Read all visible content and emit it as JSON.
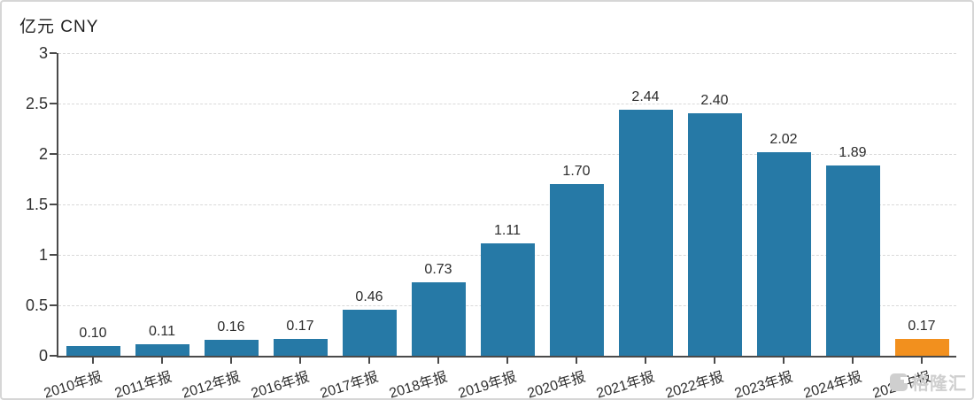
{
  "chart_data": {
    "type": "bar",
    "title": "亿元 CNY",
    "categories": [
      "2010年报",
      "2011年报",
      "2012年报",
      "2016年报",
      "2017年报",
      "2018年报",
      "2019年报",
      "2020年报",
      "2021年报",
      "2022年报",
      "2023年报",
      "2024年报",
      "2025中报"
    ],
    "values": [
      0.1,
      0.11,
      0.16,
      0.17,
      0.46,
      0.73,
      1.11,
      1.7,
      2.44,
      2.4,
      2.02,
      1.89,
      0.17
    ],
    "data_labels": [
      "0.10",
      "0.11",
      "0.16",
      "0.17",
      "0.46",
      "0.73",
      "1.11",
      "1.70",
      "2.44",
      "2.40",
      "2.02",
      "1.89",
      "0.17"
    ],
    "ylim": [
      0,
      3
    ],
    "ytick_step": 0.5,
    "ytick_labels": [
      "0",
      "0.5",
      "1",
      "1.5",
      "2",
      "2.5",
      "3"
    ],
    "grid": "horizontal-dashed",
    "legend": "none",
    "colors": {
      "bar": "#2679a6",
      "highlight_bar": "#f2901e",
      "highlight_index": 12,
      "axis": "#4a4a4a",
      "grid": "#d9d9d9",
      "label_text": "#303030"
    }
  },
  "watermark": {
    "text": "格隆汇",
    "logo": "gelonghui-logo"
  }
}
